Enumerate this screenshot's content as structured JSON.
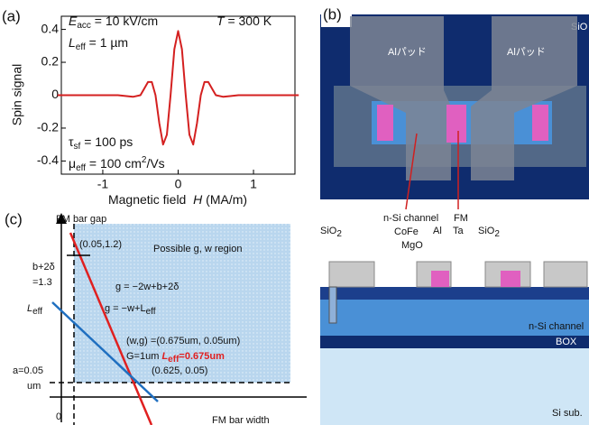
{
  "chart_data": {
    "type": "line",
    "panel_label": "(a)",
    "x_label": {
      "text": "Magnetic field  ",
      "var": "H",
      "unit": " (MA/m)"
    },
    "y_label": "Spin signal",
    "annotations": {
      "e_sym": "E",
      "e_sub": "acc",
      "e_val": " = 10 kV/cm",
      "l_sym": "L",
      "l_sub": "eff",
      "l_val": " = 1 µm",
      "t_sym": "T",
      "t_val": " = 300 K",
      "tau_sym": "τ",
      "tau_sub": "sf",
      "tau_val": " = 100 ps",
      "mu_sym": "μ",
      "mu_sub": "eff",
      "mu_val": " = 100 cm",
      "mu_sup": "2",
      "mu_tail": "/Vs"
    },
    "color": "#d42020",
    "x": [
      -1.6,
      -1.2,
      -0.8,
      -0.6,
      -0.5,
      -0.45,
      -0.4,
      -0.35,
      -0.3,
      -0.25,
      -0.2,
      -0.15,
      -0.1,
      -0.05,
      0,
      0.05,
      0.1,
      0.15,
      0.2,
      0.25,
      0.3,
      0.35,
      0.4,
      0.45,
      0.5,
      0.6,
      0.8,
      1.2,
      1.6
    ],
    "values": [
      0,
      0,
      0,
      -0.01,
      0,
      0.04,
      0.08,
      0.08,
      0,
      -0.17,
      -0.3,
      -0.24,
      0,
      0.28,
      0.39,
      0.28,
      0,
      -0.24,
      -0.3,
      -0.17,
      0,
      0.08,
      0.08,
      0.04,
      0,
      -0.01,
      0,
      0,
      0
    ],
    "xlim": [
      -1.55,
      1.55
    ],
    "ylim": [
      -0.48,
      0.48
    ],
    "xticks": [
      -1,
      0,
      1
    ],
    "yticks": [
      -0.4,
      -0.2,
      0,
      0.2,
      0.4
    ]
  },
  "panel_b": {
    "label": "(b)",
    "sio2_top": "SiO",
    "pad_left": "Alパッド",
    "pad_right": "Alパッド",
    "nsi_channel": "n-Si channel",
    "fm": "FM",
    "cofe": "CoFe",
    "al": "Al",
    "ta": "Ta",
    "mgo": "MgO",
    "sio2_right": "SiO",
    "sio2_right_sub": "2",
    "sio2_left": "SiO",
    "sio2_left_sub": "2",
    "nsi_channel_cross": "n-Si channel",
    "box": "BOX",
    "si_sub": "Si sub."
  },
  "panel_c": {
    "label": "(c)",
    "y_axis": "FM bar gap",
    "x_axis": "FM bar width",
    "origin": "0",
    "point_top": "(0.05,1.2)",
    "region": "Possible g, w region",
    "intercept": "b+2δ",
    "intercept_val": "=1.3",
    "red_eq": "g = −2w+b+2δ",
    "blue_eq_pre": "g = −w+L",
    "blue_eq_sub": "eff",
    "leff_sym": "L",
    "leff_sub": "eff",
    "wg": "(w,g) =(0.675um, 0.05um)",
    "g_val": "G=1um ",
    "leff_red_sym": "L",
    "leff_red_sub": "eff",
    "leff_red_val": "=0.675um",
    "point_bottom": "(0.625, 0.05)",
    "a_val": "a=0.05",
    "a_unit": "um"
  }
}
